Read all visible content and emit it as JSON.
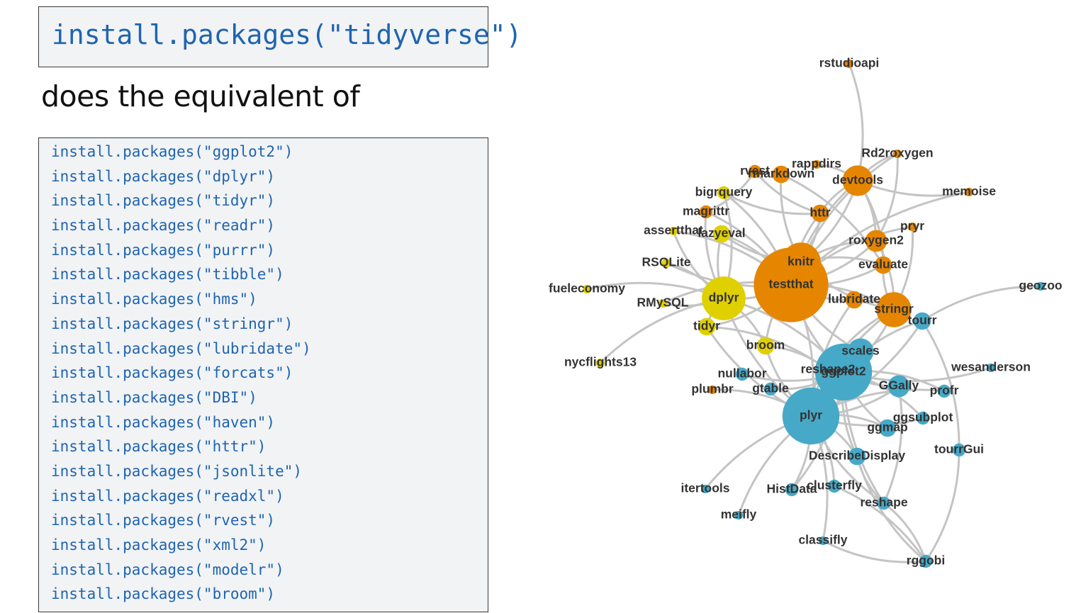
{
  "top_command": "install.packages(\"tidyverse\")",
  "subtitle": "does the equivalent of",
  "install_lines": [
    "install.packages(\"ggplot2\")",
    "install.packages(\"dplyr\")",
    "install.packages(\"tidyr\")",
    "install.packages(\"readr\")",
    "install.packages(\"purrr\")",
    "install.packages(\"tibble\")",
    "install.packages(\"hms\")",
    "install.packages(\"stringr\")",
    "install.packages(\"lubridate\")",
    "install.packages(\"forcats\")",
    "install.packages(\"DBI\")",
    "install.packages(\"haven\")",
    "install.packages(\"httr\")",
    "install.packages(\"jsonlite\")",
    "install.packages(\"readxl\")",
    "install.packages(\"rvest\")",
    "install.packages(\"xml2\")",
    "install.packages(\"modelr\")",
    "install.packages(\"broom\")"
  ],
  "colors": {
    "orange": "#e68600",
    "yellow": "#e0d000",
    "blue": "#46a9c7",
    "edge": "#c4c4c4",
    "code_text": "#1f64b0",
    "code_bg": "#f1f3f5"
  },
  "network": {
    "nodes": [
      {
        "id": "rstudioapi",
        "group": "orange",
        "size": 1
      },
      {
        "id": "Rd2roxygen",
        "group": "orange",
        "size": 1
      },
      {
        "id": "rappdirs",
        "group": "orange",
        "size": 1
      },
      {
        "id": "rvest",
        "group": "orange",
        "size": 2
      },
      {
        "id": "rmarkdown",
        "group": "orange",
        "size": 3
      },
      {
        "id": "devtools",
        "group": "orange",
        "size": 6
      },
      {
        "id": "memoise",
        "group": "orange",
        "size": 1
      },
      {
        "id": "bigrquery",
        "group": "yellow",
        "size": 2
      },
      {
        "id": "magrittr",
        "group": "orange",
        "size": 2
      },
      {
        "id": "httr",
        "group": "orange",
        "size": 3
      },
      {
        "id": "pryr",
        "group": "orange",
        "size": 1
      },
      {
        "id": "assertthat",
        "group": "yellow",
        "size": 1
      },
      {
        "id": "lazyeval",
        "group": "yellow",
        "size": 3
      },
      {
        "id": "roxygen2",
        "group": "orange",
        "size": 4
      },
      {
        "id": "knitr",
        "group": "orange",
        "size": 8
      },
      {
        "id": "RSQLite",
        "group": "yellow",
        "size": 1
      },
      {
        "id": "evaluate",
        "group": "orange",
        "size": 3
      },
      {
        "id": "testthat",
        "group": "orange",
        "size": 16
      },
      {
        "id": "fueleconomy",
        "group": "yellow",
        "size": 1
      },
      {
        "id": "geozoo",
        "group": "blue",
        "size": 1
      },
      {
        "id": "dplyr",
        "group": "yellow",
        "size": 9
      },
      {
        "id": "RMySQL",
        "group": "yellow",
        "size": 1
      },
      {
        "id": "lubridate",
        "group": "orange",
        "size": 3
      },
      {
        "id": "stringr",
        "group": "orange",
        "size": 7
      },
      {
        "id": "tourr",
        "group": "blue",
        "size": 3
      },
      {
        "id": "tidyr",
        "group": "yellow",
        "size": 3
      },
      {
        "id": "broom",
        "group": "yellow",
        "size": 3
      },
      {
        "id": "scales",
        "group": "blue",
        "size": 5
      },
      {
        "id": "nycflights13",
        "group": "yellow",
        "size": 1
      },
      {
        "id": "reshape2",
        "group": "blue",
        "size": 5
      },
      {
        "id": "ggplot2",
        "group": "blue",
        "size": 12
      },
      {
        "id": "wesanderson",
        "group": "blue",
        "size": 1
      },
      {
        "id": "nullabor",
        "group": "blue",
        "size": 2
      },
      {
        "id": "gtable",
        "group": "blue",
        "size": 2
      },
      {
        "id": "GGally",
        "group": "blue",
        "size": 4
      },
      {
        "id": "profr",
        "group": "blue",
        "size": 2
      },
      {
        "id": "plumbr",
        "group": "orange",
        "size": 1
      },
      {
        "id": "plyr",
        "group": "blue",
        "size": 12
      },
      {
        "id": "ggsubplot",
        "group": "blue",
        "size": 2
      },
      {
        "id": "ggmap",
        "group": "blue",
        "size": 3
      },
      {
        "id": "tourrGui",
        "group": "blue",
        "size": 2
      },
      {
        "id": "DescribeDisplay",
        "group": "blue",
        "size": 3
      },
      {
        "id": "itertools",
        "group": "blue",
        "size": 1
      },
      {
        "id": "HistData",
        "group": "blue",
        "size": 2
      },
      {
        "id": "clusterfly",
        "group": "blue",
        "size": 2
      },
      {
        "id": "reshape",
        "group": "blue",
        "size": 2
      },
      {
        "id": "meifly",
        "group": "blue",
        "size": 1
      },
      {
        "id": "classifly",
        "group": "blue",
        "size": 1
      },
      {
        "id": "rggobi",
        "group": "blue",
        "size": 2
      }
    ],
    "edges": [
      [
        "rstudioapi",
        "devtools"
      ],
      [
        "Rd2roxygen",
        "devtools"
      ],
      [
        "Rd2roxygen",
        "roxygen2"
      ],
      [
        "Rd2roxygen",
        "knitr"
      ],
      [
        "rappdirs",
        "devtools"
      ],
      [
        "rvest",
        "httr"
      ],
      [
        "rvest",
        "magrittr"
      ],
      [
        "rmarkdown",
        "knitr"
      ],
      [
        "rmarkdown",
        "evaluate"
      ],
      [
        "devtools",
        "httr"
      ],
      [
        "devtools",
        "knitr"
      ],
      [
        "devtools",
        "testthat"
      ],
      [
        "devtools",
        "roxygen2"
      ],
      [
        "devtools",
        "memoise"
      ],
      [
        "devtools",
        "evaluate"
      ],
      [
        "memoise",
        "testthat"
      ],
      [
        "bigrquery",
        "dplyr"
      ],
      [
        "bigrquery",
        "httr"
      ],
      [
        "bigrquery",
        "testthat"
      ],
      [
        "magrittr",
        "dplyr"
      ],
      [
        "magrittr",
        "testthat"
      ],
      [
        "httr",
        "testthat"
      ],
      [
        "httr",
        "knitr"
      ],
      [
        "pryr",
        "testthat"
      ],
      [
        "pryr",
        "stringr"
      ],
      [
        "assertthat",
        "dplyr"
      ],
      [
        "assertthat",
        "testthat"
      ],
      [
        "lazyeval",
        "dplyr"
      ],
      [
        "lazyeval",
        "testthat"
      ],
      [
        "lazyeval",
        "knitr"
      ],
      [
        "roxygen2",
        "testthat"
      ],
      [
        "roxygen2",
        "knitr"
      ],
      [
        "roxygen2",
        "stringr"
      ],
      [
        "knitr",
        "testthat"
      ],
      [
        "knitr",
        "evaluate"
      ],
      [
        "knitr",
        "stringr"
      ],
      [
        "RSQLite",
        "dplyr"
      ],
      [
        "RSQLite",
        "testthat"
      ],
      [
        "evaluate",
        "testthat"
      ],
      [
        "evaluate",
        "stringr"
      ],
      [
        "testthat",
        "dplyr"
      ],
      [
        "testthat",
        "lubridate"
      ],
      [
        "testthat",
        "stringr"
      ],
      [
        "testthat",
        "ggplot2"
      ],
      [
        "testthat",
        "plyr"
      ],
      [
        "testthat",
        "scales"
      ],
      [
        "testthat",
        "tidyr"
      ],
      [
        "testthat",
        "broom"
      ],
      [
        "fueleconomy",
        "dplyr"
      ],
      [
        "geozoo",
        "tourr"
      ],
      [
        "dplyr",
        "RMySQL"
      ],
      [
        "dplyr",
        "tidyr"
      ],
      [
        "dplyr",
        "broom"
      ],
      [
        "dplyr",
        "nycflights13"
      ],
      [
        "dplyr",
        "ggplot2"
      ],
      [
        "dplyr",
        "plyr"
      ],
      [
        "RMySQL",
        "testthat"
      ],
      [
        "lubridate",
        "plyr"
      ],
      [
        "lubridate",
        "stringr"
      ],
      [
        "stringr",
        "plyr"
      ],
      [
        "stringr",
        "ggplot2"
      ],
      [
        "stringr",
        "reshape2"
      ],
      [
        "tourr",
        "plyr"
      ],
      [
        "tourr",
        "ggplot2"
      ],
      [
        "tourr",
        "tourrGui"
      ],
      [
        "tidyr",
        "plyr"
      ],
      [
        "tidyr",
        "reshape2"
      ],
      [
        "broom",
        "plyr"
      ],
      [
        "broom",
        "reshape2"
      ],
      [
        "scales",
        "ggplot2"
      ],
      [
        "scales",
        "plyr"
      ],
      [
        "reshape2",
        "plyr"
      ],
      [
        "reshape2",
        "ggplot2"
      ],
      [
        "ggplot2",
        "plyr"
      ],
      [
        "ggplot2",
        "gtable"
      ],
      [
        "ggplot2",
        "GGally"
      ],
      [
        "ggplot2",
        "nullabor"
      ],
      [
        "ggplot2",
        "ggmap"
      ],
      [
        "ggplot2",
        "ggsubplot"
      ],
      [
        "ggplot2",
        "DescribeDisplay"
      ],
      [
        "ggplot2",
        "profr"
      ],
      [
        "ggplot2",
        "wesanderson"
      ],
      [
        "ggplot2",
        "HistData"
      ],
      [
        "ggplot2",
        "reshape"
      ],
      [
        "plyr",
        "ggmap"
      ],
      [
        "plyr",
        "ggsubplot"
      ],
      [
        "plyr",
        "DescribeDisplay"
      ],
      [
        "plyr",
        "itertools"
      ],
      [
        "plyr",
        "clusterfly"
      ],
      [
        "plyr",
        "meifly"
      ],
      [
        "plyr",
        "classifly"
      ],
      [
        "plyr",
        "plumbr"
      ],
      [
        "plyr",
        "HistData"
      ],
      [
        "plyr",
        "reshape"
      ],
      [
        "plyr",
        "profr"
      ],
      [
        "plyr",
        "GGally"
      ],
      [
        "GGally",
        "reshape"
      ],
      [
        "DescribeDisplay",
        "reshape"
      ],
      [
        "clusterfly",
        "rggobi"
      ],
      [
        "classifly",
        "rggobi"
      ],
      [
        "reshape",
        "rggobi"
      ],
      [
        "DescribeDisplay",
        "rggobi"
      ],
      [
        "tourrGui",
        "rggobi"
      ]
    ]
  }
}
